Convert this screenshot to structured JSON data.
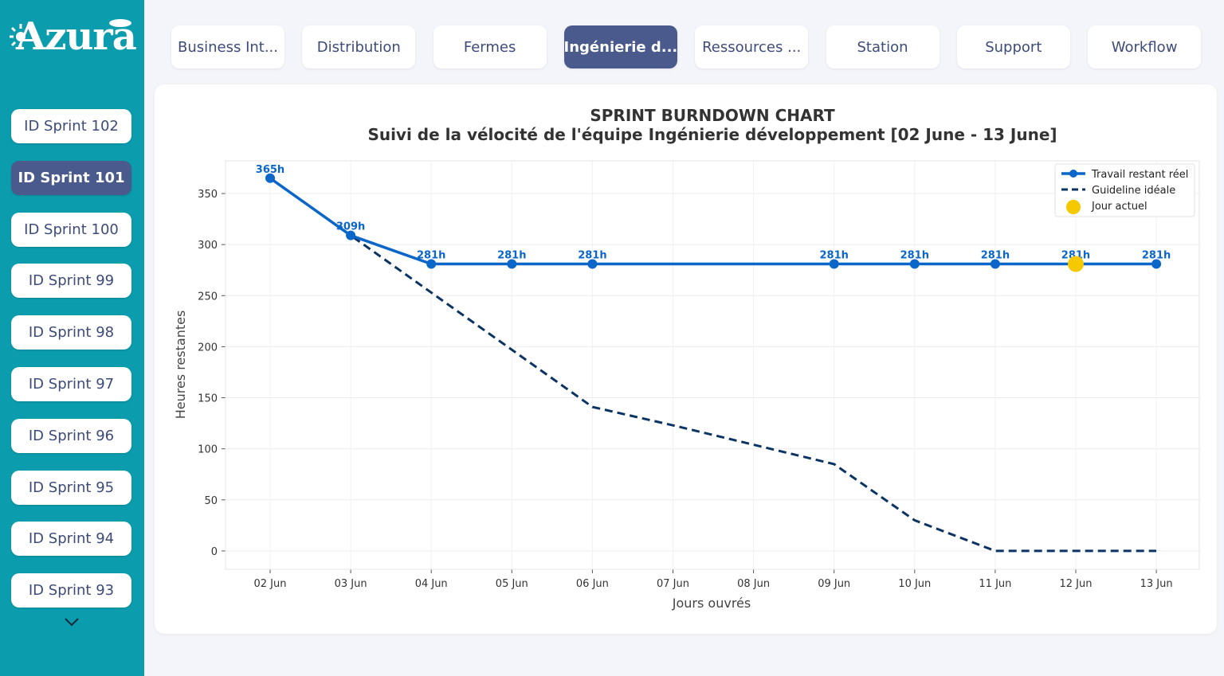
{
  "app": {
    "logo_text": "Azura"
  },
  "sidebar": {
    "items": [
      {
        "label": "ID Sprint 102",
        "active": false
      },
      {
        "label": "ID Sprint 101",
        "active": true
      },
      {
        "label": "ID Sprint 100",
        "active": false
      },
      {
        "label": "ID Sprint 99",
        "active": false
      },
      {
        "label": "ID Sprint 98",
        "active": false
      },
      {
        "label": "ID Sprint 97",
        "active": false
      },
      {
        "label": "ID Sprint 96",
        "active": false
      },
      {
        "label": "ID Sprint 95",
        "active": false
      },
      {
        "label": "ID Sprint 94",
        "active": false
      },
      {
        "label": "ID Sprint 93",
        "active": false
      }
    ],
    "more_icon": "chevron-down-icon"
  },
  "tabs": [
    {
      "label": "Business Int...",
      "active": false
    },
    {
      "label": "Distribution",
      "active": false
    },
    {
      "label": "Fermes",
      "active": false
    },
    {
      "label": "Ingénierie d...",
      "active": true
    },
    {
      "label": "Ressources ...",
      "active": false
    },
    {
      "label": "Station",
      "active": false
    },
    {
      "label": "Support",
      "active": false
    },
    {
      "label": "Workflow",
      "active": false
    }
  ],
  "colors": {
    "sidebar": "#0b9cad",
    "active": "#4a5a8c",
    "actual": "#0a66c8",
    "ideal": "#0b3463",
    "today": "#f5c800"
  },
  "chart_data": {
    "type": "line",
    "title": "SPRINT BURNDOWN CHART",
    "subtitle": "Suivi de la vélocité de l'équipe Ingénierie développement [02 June - 13 June]",
    "xlabel": "Jours ouvrés",
    "ylabel": "Heures restantes",
    "categories": [
      "02 Jun",
      "03 Jun",
      "04 Jun",
      "05 Jun",
      "06 Jun",
      "07 Jun",
      "08 Jun",
      "09 Jun",
      "10 Jun",
      "11 Jun",
      "12 Jun",
      "13 Jun"
    ],
    "ylim": [
      -18,
      382
    ],
    "yticks": [
      0,
      50,
      100,
      150,
      200,
      250,
      300,
      350
    ],
    "grid": true,
    "legend_position": "top-right",
    "series": [
      {
        "name": "Travail restant réel",
        "style": "solid-markers",
        "values": [
          365,
          309,
          281,
          281,
          281,
          null,
          null,
          281,
          281,
          281,
          281,
          281
        ],
        "labels": [
          "365h",
          "309h",
          "281h",
          "281h",
          "281h",
          null,
          null,
          "281h",
          "281h",
          "281h",
          "281h",
          "281h"
        ]
      },
      {
        "name": "Guideline idéale",
        "style": "dashed",
        "values": [
          365,
          309,
          253,
          197,
          141,
          123,
          104,
          85,
          30,
          0,
          0,
          0
        ]
      }
    ],
    "today": {
      "name": "Jour actuel",
      "index": 10,
      "value": 281
    }
  }
}
